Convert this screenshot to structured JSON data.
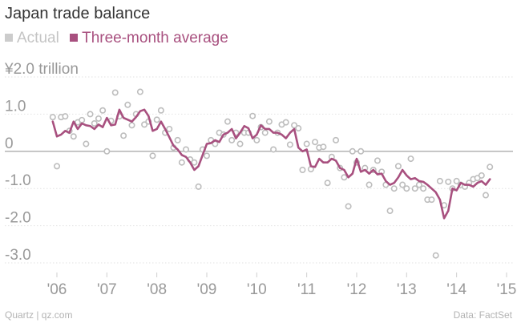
{
  "title": "Japan trade balance",
  "legend": [
    {
      "label": "Actual",
      "color": "#bdbdbd"
    },
    {
      "label": "Three-month average",
      "color": "#a8507f"
    }
  ],
  "footer": {
    "source": "Quartz | qz.com",
    "data": "Data: FactSet"
  },
  "chart_data": {
    "type": "line",
    "title": "Japan trade balance",
    "xlabel": "",
    "ylabel": "",
    "unit": "¥2.0 trillion",
    "ylim": [
      -3.5,
      2.2
    ],
    "xlim": [
      2005.5,
      2015.2
    ],
    "y_ticks": [
      {
        "value": 2.0,
        "label": "¥2.0 trillion"
      },
      {
        "value": 1.0,
        "label": "1.0"
      },
      {
        "value": 0,
        "label": "0"
      },
      {
        "value": -1.0,
        "label": "-1.0"
      },
      {
        "value": -2.0,
        "label": "-2.0"
      },
      {
        "value": -3.0,
        "label": "-3.0"
      }
    ],
    "x_ticks": [
      {
        "value": 2006,
        "label": "'06"
      },
      {
        "value": 2007,
        "label": "'07"
      },
      {
        "value": 2008,
        "label": "'08"
      },
      {
        "value": 2009,
        "label": "'09"
      },
      {
        "value": 2010,
        "label": "'10"
      },
      {
        "value": 2011,
        "label": "'11"
      },
      {
        "value": 2012,
        "label": "'12"
      },
      {
        "value": 2013,
        "label": "'13"
      },
      {
        "value": 2014,
        "label": "'14"
      },
      {
        "value": 2015,
        "label": "'15"
      }
    ],
    "grid": "horizontal",
    "legend_position": "top-left",
    "x_start": 2005.917,
    "x_step": 0.08333,
    "series": [
      {
        "name": "Actual",
        "style": "scatter",
        "color": "#bdbdbd",
        "values": [
          0.92,
          -0.4,
          0.92,
          0.94,
          0.55,
          0.4,
          0.78,
          0.84,
          0.2,
          1.0,
          0.75,
          0.88,
          1.1,
          0.0,
          0.82,
          1.58,
          0.94,
          0.42,
          1.25,
          0.7,
          1.0,
          1.6,
          0.72,
          0.8,
          -0.12,
          0.85,
          1.1,
          0.5,
          0.6,
          0.1,
          0.3,
          -0.3,
          0.05,
          -0.22,
          -0.3,
          -0.95,
          0.05,
          -0.12,
          0.3,
          0.2,
          0.5,
          0.45,
          0.8,
          0.3,
          0.5,
          0.2,
          0.5,
          0.5,
          0.95,
          0.3,
          0.65,
          0.5,
          0.8,
          0.05,
          0.5,
          0.72,
          0.78,
          0.18,
          0.7,
          0.62,
          -0.5,
          0.2,
          -0.48,
          0.25,
          0.1,
          0.12,
          -0.85,
          -0.15,
          0.3,
          -0.45,
          -0.7,
          -1.48,
          0.0,
          -0.3,
          0.0,
          -0.45,
          -0.9,
          -0.5,
          -0.25,
          -0.55,
          -0.9,
          -1.6,
          -1.0,
          -0.4,
          -0.9,
          -1.0,
          -0.2,
          -1.0,
          -0.9,
          -1.0,
          -1.3,
          -1.3,
          -2.8,
          -0.8,
          -1.45,
          -0.82,
          -1.0,
          -0.8,
          -0.9,
          -0.95,
          -0.85,
          -0.75,
          -0.72,
          -0.65,
          -1.18,
          -0.42
        ]
      },
      {
        "name": "Three-month average",
        "style": "line",
        "color": "#a8507f",
        "values": [
          0.8,
          0.4,
          0.45,
          0.55,
          0.5,
          0.8,
          0.6,
          0.75,
          0.7,
          0.68,
          0.6,
          0.72,
          0.65,
          0.9,
          0.7,
          0.72,
          1.12,
          0.9,
          0.85,
          0.8,
          0.92,
          1.08,
          1.12,
          0.95,
          0.55,
          0.6,
          0.8,
          0.6,
          0.38,
          0.15,
          0.05,
          -0.1,
          -0.15,
          -0.3,
          -0.5,
          -0.4,
          -0.1,
          0.2,
          0.22,
          0.3,
          0.25,
          0.45,
          0.5,
          0.6,
          0.35,
          0.5,
          0.68,
          0.62,
          0.35,
          0.45,
          0.7,
          0.6,
          0.6,
          0.5,
          0.5,
          0.45,
          0.35,
          0.5,
          0.6,
          0.1,
          0.0,
          0.05,
          -0.4,
          -0.42,
          -0.2,
          -0.3,
          -0.3,
          -0.2,
          -0.25,
          -0.45,
          -0.5,
          -0.7,
          -0.6,
          -0.2,
          -0.55,
          -0.5,
          -0.6,
          -0.5,
          -0.62,
          -0.6,
          -0.8,
          -0.9,
          -0.85,
          -0.7,
          -0.5,
          -0.65,
          -0.75,
          -0.72,
          -0.8,
          -0.82,
          -0.9,
          -1.0,
          -1.1,
          -1.3,
          -1.8,
          -1.6,
          -1.0,
          -1.05,
          -0.85,
          -0.9,
          -0.9,
          -0.95,
          -0.85,
          -0.8,
          -0.9,
          -0.75
        ]
      }
    ]
  }
}
